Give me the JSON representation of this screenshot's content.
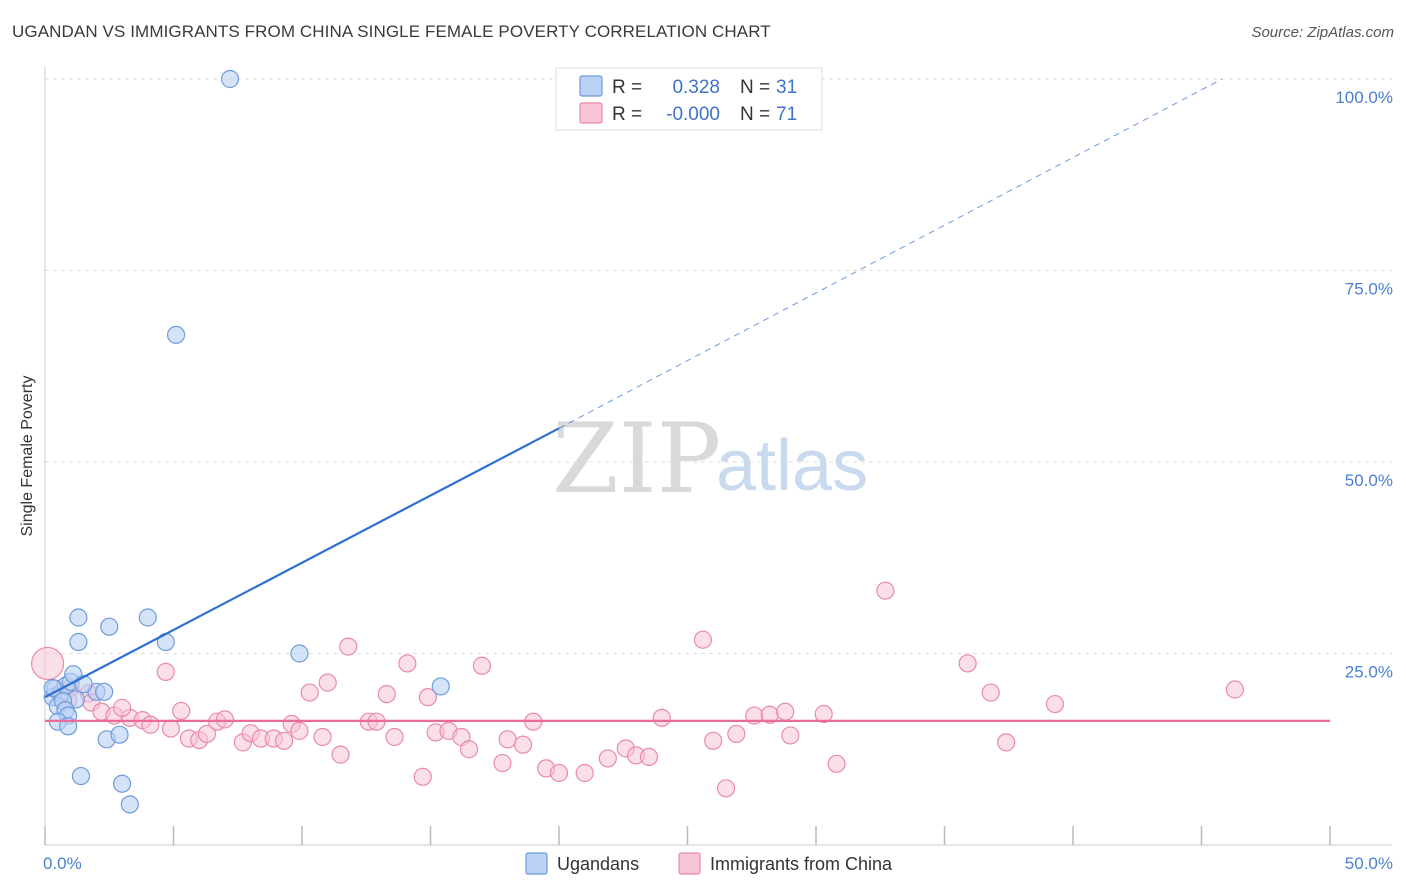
{
  "title": "UGANDAN VS IMMIGRANTS FROM CHINA SINGLE FEMALE POVERTY CORRELATION CHART",
  "source": "Source: ZipAtlas.com",
  "watermark": {
    "zip": "ZIP",
    "atlas": "atlas"
  },
  "colors": {
    "ugandans_fill": "#b9d1f3",
    "ugandans_stroke": "#6f9bdc",
    "ugandans_line": "#2f6fd0",
    "china_fill": "#f7c5d6",
    "china_stroke": "#e98aab",
    "china_line": "#e86b98",
    "grid": "#dddddd",
    "axis_text": "#4a7fd1"
  },
  "stats": [
    {
      "r_label": "R =",
      "r_value": "0.328",
      "n_label": "N =",
      "n_value": "31"
    },
    {
      "r_label": "R =",
      "r_value": "-0.000",
      "n_label": "N =",
      "n_value": "71"
    }
  ],
  "legend": {
    "ugandans": "Ugandans",
    "china": "Immigrants from China"
  },
  "chart_data": {
    "type": "scatter",
    "title": "UGANDAN VS IMMIGRANTS FROM CHINA SINGLE FEMALE POVERTY CORRELATION CHART",
    "xlabel": "",
    "ylabel": "Single Female Poverty",
    "xlim": [
      0,
      50
    ],
    "ylim": [
      0,
      100
    ],
    "x_tick_labels": [
      "0.0%",
      "50.0%"
    ],
    "y_tick_labels": [
      "25.0%",
      "50.0%",
      "75.0%",
      "100.0%"
    ],
    "y_tick_values": [
      25,
      50,
      75,
      100
    ],
    "x_minor_ticks": [
      5,
      10,
      15,
      20,
      25,
      30,
      35,
      40,
      45
    ],
    "grid": true,
    "legend_position": "bottom-center",
    "series": [
      {
        "name": "Ugandans",
        "r": 0.328,
        "n": 31,
        "trend": {
          "x0": 0,
          "y0": 19.3,
          "x1": 20,
          "y1": 54.4,
          "dashed_to_x": 45.8,
          "dashed_to_y": 100
        },
        "points": [
          [
            7.2,
            100.0
          ],
          [
            5.1,
            66.6
          ],
          [
            1.3,
            29.7
          ],
          [
            2.5,
            28.5
          ],
          [
            4.0,
            29.7
          ],
          [
            1.3,
            26.5
          ],
          [
            4.7,
            26.5
          ],
          [
            9.9,
            25.0
          ],
          [
            15.4,
            20.7
          ],
          [
            0.3,
            19.3
          ],
          [
            0.4,
            20.4
          ],
          [
            0.6,
            19.8
          ],
          [
            0.8,
            20.8
          ],
          [
            1.0,
            21.3
          ],
          [
            1.1,
            22.3
          ],
          [
            1.2,
            19.0
          ],
          [
            2.0,
            20.0
          ],
          [
            2.3,
            20.0
          ],
          [
            0.5,
            18.1
          ],
          [
            0.7,
            18.8
          ],
          [
            0.8,
            17.6
          ],
          [
            0.9,
            16.9
          ],
          [
            0.5,
            16.1
          ],
          [
            0.9,
            15.5
          ],
          [
            2.4,
            13.8
          ],
          [
            2.9,
            14.4
          ],
          [
            1.4,
            9.0
          ],
          [
            3.0,
            8.0
          ],
          [
            3.3,
            5.3
          ],
          [
            0.3,
            20.5
          ],
          [
            1.5,
            21.0
          ]
        ]
      },
      {
        "name": "Immigrants from China",
        "r": -0.0,
        "n": 71,
        "trend": {
          "x0": 0,
          "y0": 16.2,
          "x1": 50,
          "y1": 16.2
        },
        "points": [
          [
            0.1,
            23.7
          ],
          [
            1.0,
            20.5
          ],
          [
            1.7,
            19.8
          ],
          [
            1.8,
            18.6
          ],
          [
            2.2,
            17.4
          ],
          [
            2.7,
            16.9
          ],
          [
            3.3,
            16.6
          ],
          [
            3.0,
            17.9
          ],
          [
            3.8,
            16.3
          ],
          [
            4.1,
            15.7
          ],
          [
            4.7,
            22.6
          ],
          [
            4.9,
            15.2
          ],
          [
            5.3,
            17.5
          ],
          [
            5.6,
            13.9
          ],
          [
            6.0,
            13.7
          ],
          [
            6.3,
            14.5
          ],
          [
            6.7,
            16.1
          ],
          [
            7.0,
            16.4
          ],
          [
            7.7,
            13.4
          ],
          [
            8.0,
            14.6
          ],
          [
            8.4,
            13.9
          ],
          [
            8.9,
            13.9
          ],
          [
            9.3,
            13.6
          ],
          [
            9.6,
            15.8
          ],
          [
            9.9,
            14.9
          ],
          [
            10.3,
            19.9
          ],
          [
            10.8,
            14.1
          ],
          [
            11.0,
            21.2
          ],
          [
            11.5,
            11.8
          ],
          [
            11.8,
            25.9
          ],
          [
            12.6,
            16.1
          ],
          [
            12.9,
            16.1
          ],
          [
            13.3,
            19.7
          ],
          [
            13.6,
            14.1
          ],
          [
            14.1,
            23.7
          ],
          [
            14.7,
            8.9
          ],
          [
            14.9,
            19.3
          ],
          [
            15.2,
            14.7
          ],
          [
            15.7,
            14.9
          ],
          [
            16.2,
            14.1
          ],
          [
            16.5,
            12.5
          ],
          [
            17.0,
            23.4
          ],
          [
            17.8,
            10.7
          ],
          [
            18.0,
            13.8
          ],
          [
            18.6,
            13.1
          ],
          [
            19.0,
            16.1
          ],
          [
            19.5,
            10.0
          ],
          [
            20.0,
            9.4
          ],
          [
            21.0,
            9.4
          ],
          [
            21.9,
            11.3
          ],
          [
            22.6,
            12.6
          ],
          [
            23.0,
            11.7
          ],
          [
            23.5,
            11.5
          ],
          [
            24.0,
            16.6
          ],
          [
            25.6,
            26.8
          ],
          [
            26.0,
            13.6
          ],
          [
            26.5,
            7.4
          ],
          [
            26.9,
            14.5
          ],
          [
            27.6,
            16.9
          ],
          [
            28.2,
            17.0
          ],
          [
            28.8,
            17.4
          ],
          [
            29.0,
            14.3
          ],
          [
            30.3,
            17.1
          ],
          [
            30.8,
            10.6
          ],
          [
            32.7,
            33.2
          ],
          [
            35.9,
            23.7
          ],
          [
            36.8,
            19.9
          ],
          [
            37.4,
            13.4
          ],
          [
            39.3,
            18.4
          ],
          [
            46.3,
            20.3
          ],
          [
            0.9,
            18.9
          ]
        ]
      }
    ]
  }
}
